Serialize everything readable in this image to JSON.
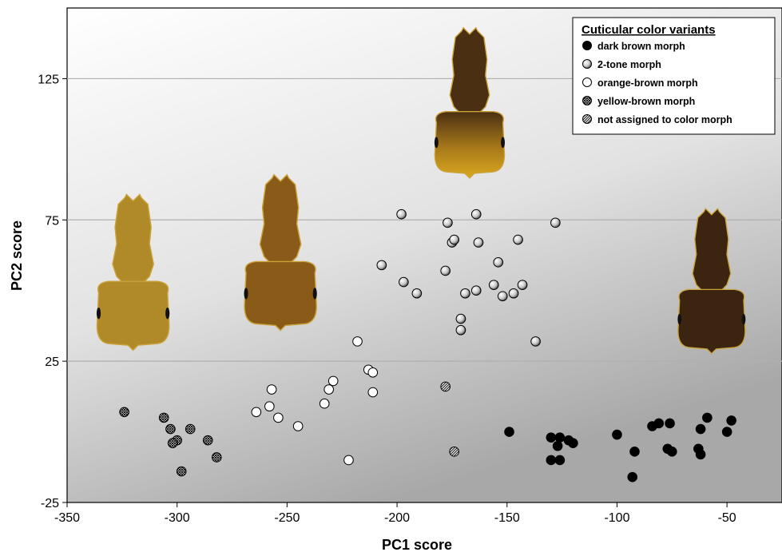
{
  "chart_data": {
    "type": "scatter",
    "xlabel": "PC1 score",
    "ylabel": "PC2 score",
    "xlim": [
      -350,
      -25
    ],
    "ylim": [
      -25,
      150
    ],
    "xticks": [
      -350,
      -300,
      -250,
      -200,
      -150,
      -100,
      -50
    ],
    "yticks": [
      -25,
      25,
      75,
      125
    ],
    "grid": "horizontal at y ticks",
    "legend": {
      "title": "Cuticular color variants",
      "position": "top-right"
    },
    "series": [
      {
        "name": "dark brown morph",
        "marker": "filled-black",
        "points": [
          [
            -149,
            0
          ],
          [
            -130,
            -2
          ],
          [
            -127,
            -5
          ],
          [
            -126,
            -2
          ],
          [
            -122,
            -3
          ],
          [
            -120,
            -4
          ],
          [
            -130,
            -10
          ],
          [
            -126,
            -10
          ],
          [
            -100,
            -1
          ],
          [
            -92,
            -7
          ],
          [
            -93,
            -16
          ],
          [
            -84,
            2
          ],
          [
            -81,
            3
          ],
          [
            -76,
            3
          ],
          [
            -77,
            -6
          ],
          [
            -75,
            -7
          ],
          [
            -63,
            -6
          ],
          [
            -62,
            -8
          ],
          [
            -62,
            1
          ],
          [
            -59,
            5
          ],
          [
            -50,
            0
          ],
          [
            -48,
            4
          ]
        ]
      },
      {
        "name": "2-tone morph",
        "marker": "gradient-grey",
        "points": [
          [
            -198,
            77
          ],
          [
            -177,
            74
          ],
          [
            -164,
            77
          ],
          [
            -128,
            74
          ],
          [
            -175,
            67
          ],
          [
            -174,
            68
          ],
          [
            -163,
            67
          ],
          [
            -145,
            68
          ],
          [
            -207,
            59
          ],
          [
            -178,
            57
          ],
          [
            -154,
            60
          ],
          [
            -197,
            53
          ],
          [
            -191,
            49
          ],
          [
            -169,
            49
          ],
          [
            -164,
            50
          ],
          [
            -156,
            52
          ],
          [
            -152,
            48
          ],
          [
            -147,
            49
          ],
          [
            -143,
            52
          ],
          [
            -171,
            40
          ],
          [
            -171,
            36
          ],
          [
            -137,
            32
          ]
        ]
      },
      {
        "name": "orange-brown morph",
        "marker": "open-white",
        "points": [
          [
            -218,
            32
          ],
          [
            -213,
            22
          ],
          [
            -211,
            21
          ],
          [
            -211,
            14
          ],
          [
            -229,
            18
          ],
          [
            -231,
            15
          ],
          [
            -233,
            10
          ],
          [
            -257,
            15
          ],
          [
            -258,
            9
          ],
          [
            -264,
            7
          ],
          [
            -254,
            5
          ],
          [
            -245,
            2
          ],
          [
            -222,
            -10
          ]
        ]
      },
      {
        "name": "yellow-brown morph",
        "marker": "cross-hatched",
        "points": [
          [
            -324,
            7
          ],
          [
            -306,
            5
          ],
          [
            -303,
            1
          ],
          [
            -294,
            1
          ],
          [
            -300,
            -3
          ],
          [
            -302,
            -4
          ],
          [
            -286,
            -3
          ],
          [
            -282,
            -9
          ],
          [
            -298,
            -14
          ]
        ]
      },
      {
        "name": "not assigned to color morph",
        "marker": "diagonal-hatched",
        "points": [
          [
            -178,
            16
          ],
          [
            -174,
            -7
          ]
        ]
      }
    ]
  },
  "colors": {
    "dark_brown_ant": "#3b2410",
    "two_tone_ant_head": "#4a2f12",
    "two_tone_ant_body": "#c8961c",
    "orange_brown_ant": "#8a5a18",
    "yellow_brown_ant": "#b08a28",
    "gridline": "#b0b0b0",
    "background_light": "#ffffff",
    "background_dark": "#a9a9a9"
  },
  "illustrations": [
    {
      "name": "yellow-brown-ant-icon",
      "x": -320,
      "y": 55,
      "height": 58,
      "body": "#b08a28",
      "head": "#b08a28",
      "eyes": true
    },
    {
      "name": "orange-brown-ant-icon",
      "x": -253,
      "y": 62,
      "height": 58,
      "body": "#8a5a18",
      "head": "#8a5a18",
      "eyes": true
    },
    {
      "name": "two-tone-ant-icon",
      "x": -167,
      "y": 115,
      "height": 56,
      "body": "#c8961c",
      "head": "#4a2f12",
      "eyes": true
    },
    {
      "name": "dark-brown-ant-icon",
      "x": -57,
      "y": 52,
      "height": 54,
      "body": "#3b2410",
      "head": "#3b2410",
      "eyes": true
    }
  ]
}
